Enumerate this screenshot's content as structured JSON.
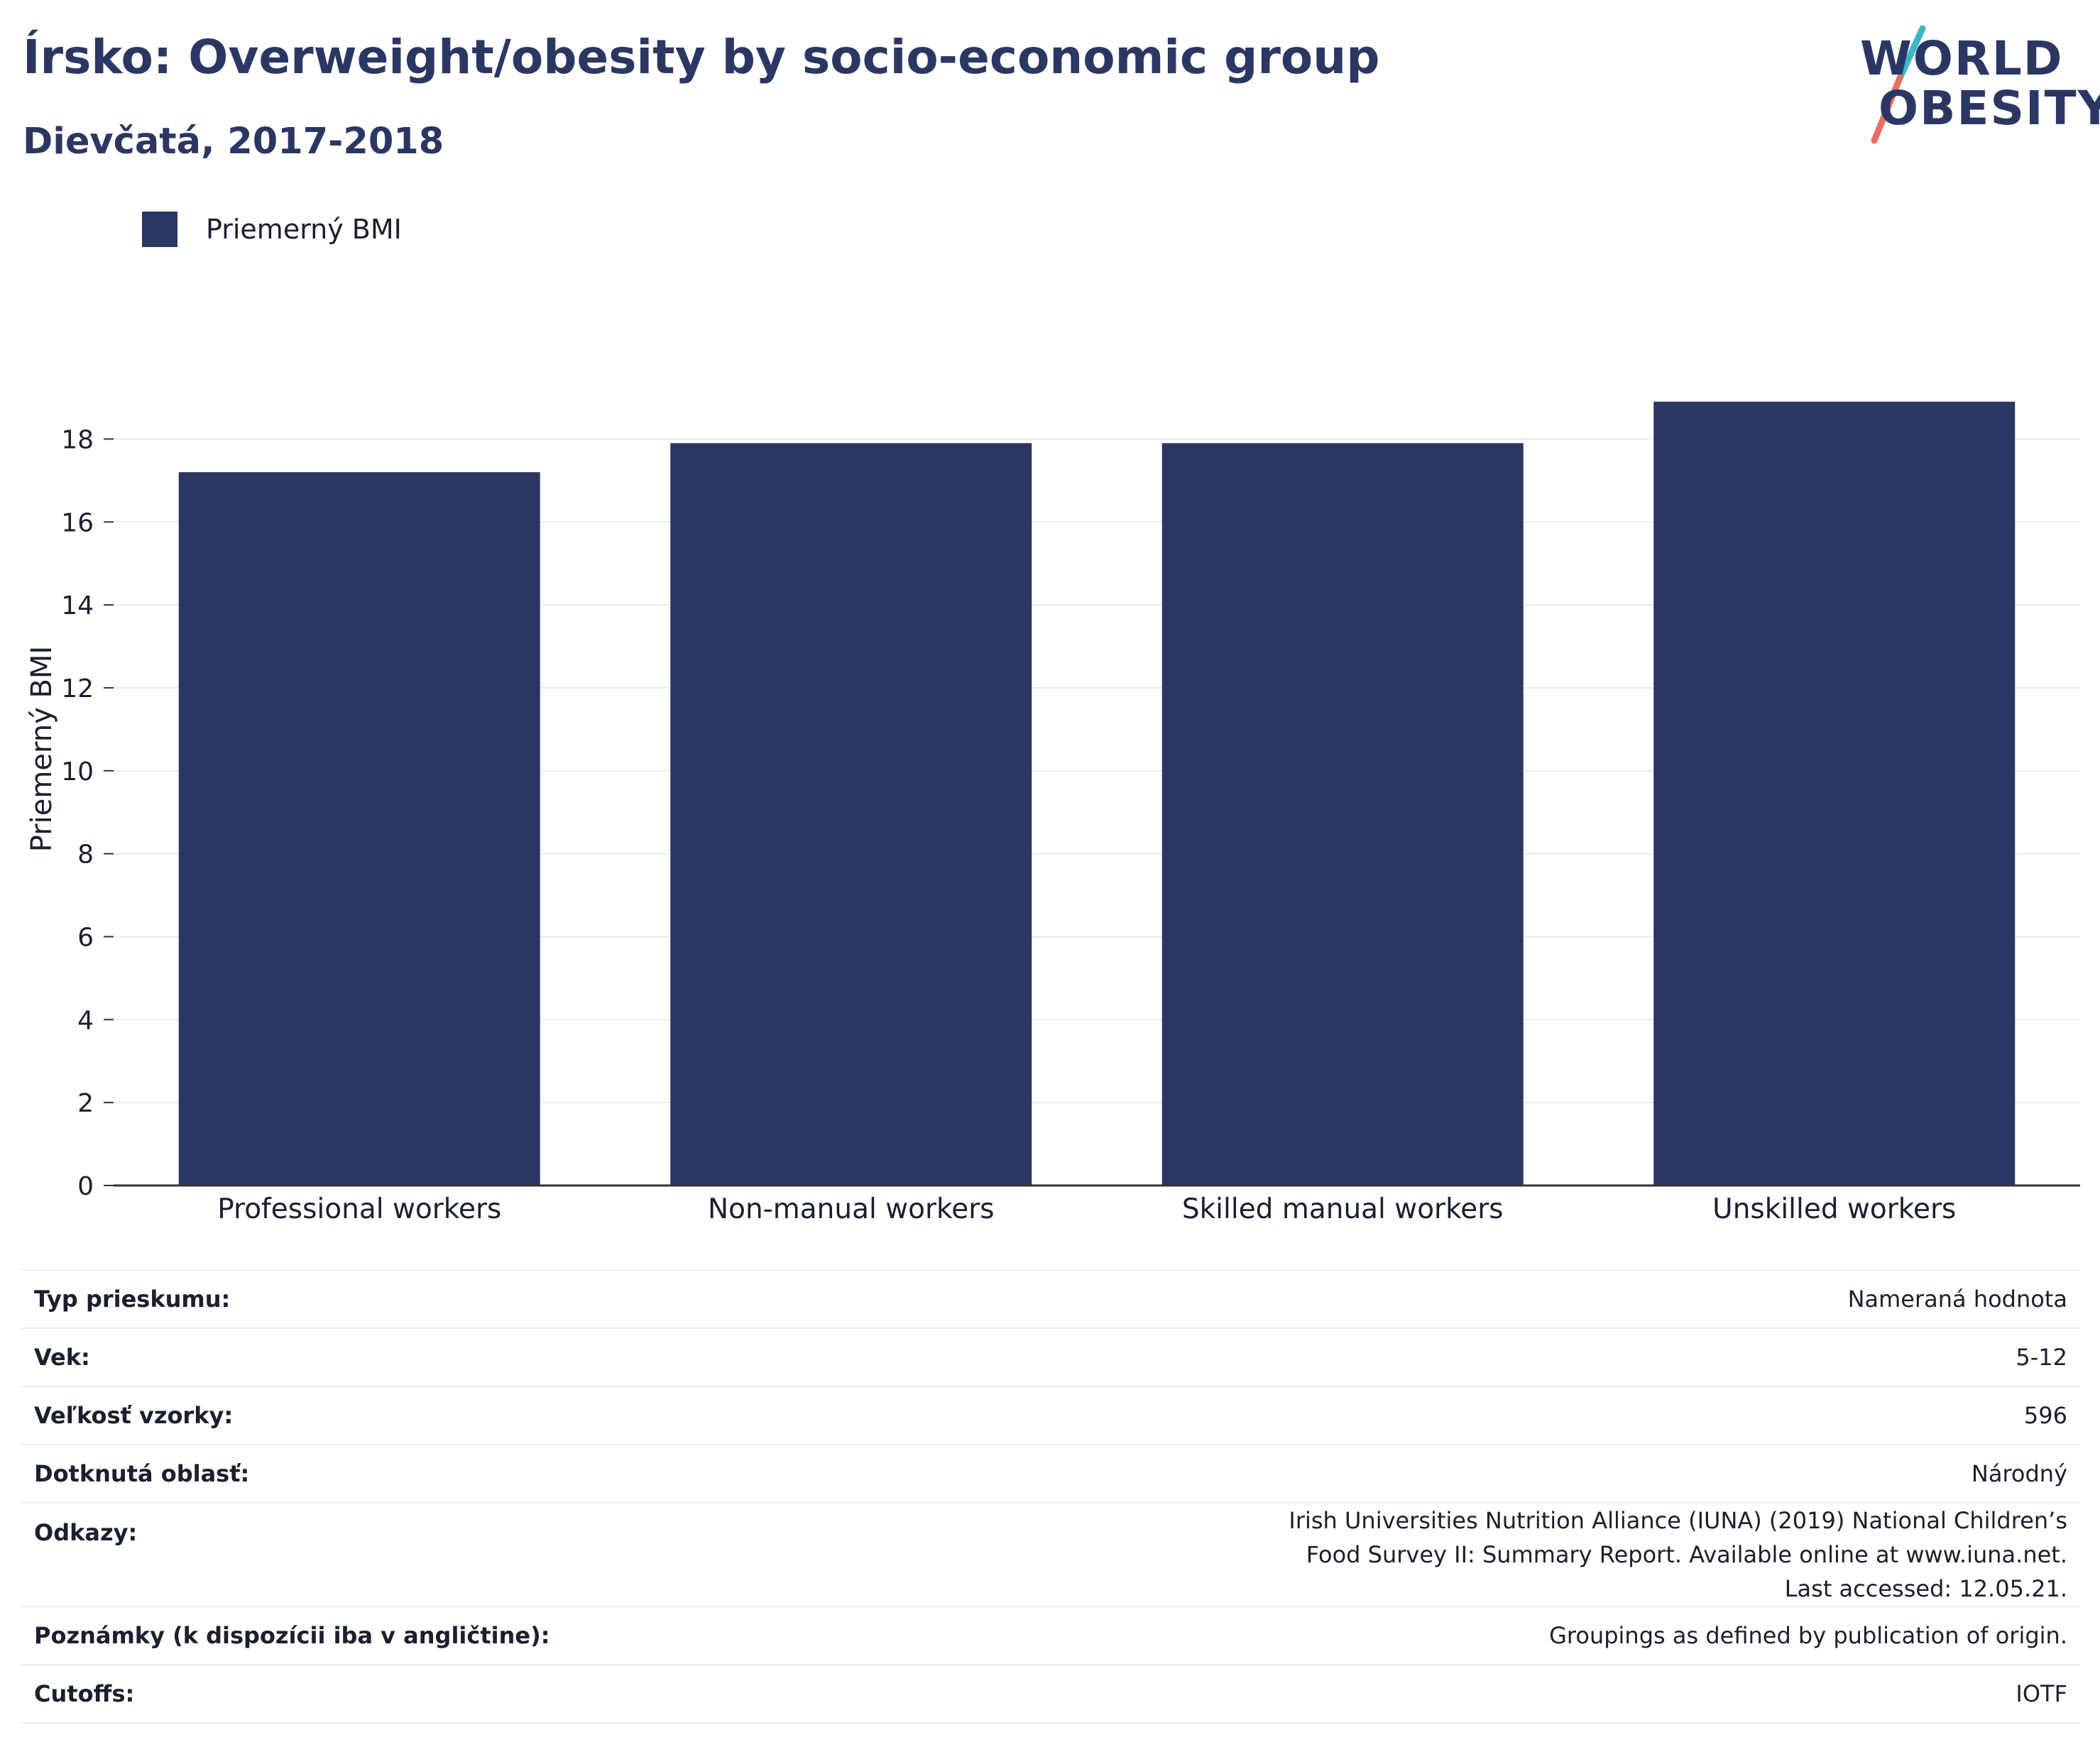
{
  "title": "Írsko: Overweight/obesity by socio-economic group",
  "subtitle": "Dievčatá, 2017-2018",
  "logo": {
    "line1": "WORLD",
    "line2": "OBESITY"
  },
  "colors": {
    "bar": "#2b3763",
    "title": "#2b3763",
    "grid": "#ebebeb",
    "axis": "#333333",
    "logo_slash_top": "#3fb6c4",
    "logo_slash_bottom": "#e8705f"
  },
  "chart_data": {
    "type": "bar",
    "categories": [
      "Professional workers",
      "Non-manual workers",
      "Skilled manual workers",
      "Unskilled workers"
    ],
    "series": [
      {
        "name": "Priemerný BMI",
        "values": [
          17.2,
          17.9,
          17.9,
          18.9
        ]
      }
    ],
    "title": "Írsko: Overweight/obesity by socio-economic group",
    "subtitle": "Dievčatá, 2017-2018",
    "xlabel": "",
    "ylabel": "Priemerný BMI",
    "ylim": [
      0,
      19
    ],
    "yticks": [
      0,
      2,
      4,
      6,
      8,
      10,
      12,
      14,
      16,
      18
    ],
    "grid": true,
    "legend": "top-left"
  },
  "info": [
    {
      "key": "Typ prieskumu:",
      "value": "Nameraná hodnota"
    },
    {
      "key": "Vek:",
      "value": "5-12"
    },
    {
      "key": "Veľkosť vzorky:",
      "value": "596"
    },
    {
      "key": "Dotknutá oblasť:",
      "value": "Národný"
    },
    {
      "key": "Odkazy:",
      "value": "Irish Universities Nutrition Alliance (IUNA) (2019) National Children’s Food Survey II: Summary Report. Available online at www.iuna.net. Last accessed: 12.05.21."
    },
    {
      "key": "Poznámky (k dispozícii iba v angličtine):",
      "value": "Groupings as defined by publication of origin."
    },
    {
      "key": "Cutoffs:",
      "value": "IOTF"
    }
  ]
}
